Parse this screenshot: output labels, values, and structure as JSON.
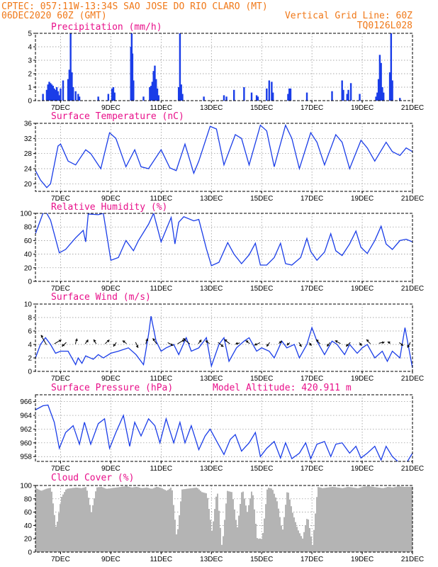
{
  "header": {
    "line1": "CPTEC:   057:11W-13:34S   SAO JOSE DO RIO CLARO (MT)",
    "line2_left": "06DEC2020 60Z (GMT)",
    "line2_right": "Vertical Grid Line: 60Z",
    "line3_right": "TQ0126L028"
  },
  "colors": {
    "header": "#f07818",
    "title": "#e8108a",
    "series": "#1a3de8",
    "cloud": "#b4b4b4",
    "grid": "#8a8a8a"
  },
  "x_axis": {
    "unit": "day",
    "range": [
      6.0,
      21.0
    ],
    "tick_days": [
      7,
      9,
      11,
      13,
      15,
      17,
      19,
      21
    ],
    "tick_labels": [
      "7DEC",
      "9DEC",
      "11DEC",
      "13DEC",
      "15DEC",
      "17DEC",
      "19DEC",
      "21DEC"
    ]
  },
  "panels": {
    "precip": {
      "title": "Precipitation (mm/h)",
      "yticks": [
        "0",
        "1",
        "2",
        "3",
        "4",
        "5"
      ]
    },
    "temp": {
      "title": "Surface Temperature (nC)",
      "yticks": [
        "20",
        "24",
        "28",
        "32",
        "36"
      ]
    },
    "humidity": {
      "title": "Relative Humidity (%)",
      "yticks": [
        "0",
        "20",
        "40",
        "60",
        "80",
        "100"
      ]
    },
    "wind": {
      "title": "Surface Wind (m/s)",
      "yticks": [
        "0",
        "2",
        "4",
        "6",
        "8",
        "10"
      ]
    },
    "pressure": {
      "title": "Surface Pressure (hPa)",
      "extra": "Model Altitude: 420.911 m",
      "yticks": [
        "958",
        "960",
        "962",
        "964",
        "966"
      ]
    },
    "cloud": {
      "title": "Cloud Cover (%)",
      "yticks": [
        "0",
        "20",
        "40",
        "60",
        "80",
        "100"
      ]
    }
  },
  "chart_data": [
    {
      "type": "bar",
      "title": "Precipitation (mm/h)",
      "ylim": [
        0,
        5
      ],
      "x": [
        6.3,
        6.45,
        6.5,
        6.55,
        6.6,
        6.65,
        6.7,
        6.75,
        6.8,
        6.85,
        6.9,
        6.95,
        7.0,
        7.1,
        7.3,
        7.35,
        7.4,
        7.45,
        7.5,
        7.6,
        7.7,
        7.75,
        8.5,
        8.9,
        9.05,
        9.1,
        9.15,
        9.8,
        9.83,
        9.86,
        9.9,
        10.3,
        10.55,
        10.6,
        10.65,
        10.7,
        10.75,
        10.8,
        10.85,
        10.9,
        11.7,
        11.75,
        11.8,
        11.85,
        12.7,
        13.5,
        13.6,
        13.9,
        14.3,
        14.6,
        14.8,
        14.85,
        15.2,
        15.3,
        15.4,
        15.45,
        16.05,
        16.1,
        16.15,
        16.8,
        17.8,
        18.2,
        18.25,
        18.4,
        18.45,
        18.55,
        18.9,
        19.55,
        19.6,
        19.65,
        19.7,
        19.75,
        19.8,
        19.85,
        20.1,
        20.15,
        20.2,
        20.5
      ],
      "values": [
        0.5,
        0.8,
        1.2,
        1.4,
        1.3,
        1.2,
        1.1,
        0.9,
        0.8,
        1.0,
        0.7,
        0.4,
        0.9,
        1.5,
        1.6,
        2.3,
        5.0,
        2.1,
        1.0,
        0.7,
        0.5,
        0.3,
        0.3,
        0.5,
        0.9,
        1.0,
        0.6,
        4.0,
        5.0,
        3.5,
        1.5,
        0.3,
        1.0,
        1.1,
        1.4,
        2.2,
        2.6,
        1.6,
        0.9,
        0.4,
        1.0,
        5.0,
        1.2,
        0.5,
        0.3,
        0.4,
        0.3,
        0.8,
        1.0,
        0.6,
        0.4,
        0.3,
        0.9,
        1.5,
        1.4,
        0.6,
        0.5,
        0.9,
        0.9,
        0.6,
        0.7,
        1.5,
        0.8,
        0.5,
        0.8,
        1.3,
        0.5,
        0.3,
        0.6,
        1.6,
        3.4,
        2.8,
        1.0,
        0.6,
        2.1,
        5.0,
        1.5,
        0.2
      ]
    },
    {
      "type": "line",
      "title": "Surface Temperature (nC)",
      "ylim": [
        18,
        36
      ],
      "x": [
        6.0,
        6.2,
        6.45,
        6.6,
        6.9,
        7.0,
        7.3,
        7.6,
        8.0,
        8.2,
        8.6,
        8.95,
        9.2,
        9.6,
        9.95,
        10.2,
        10.5,
        11.0,
        11.35,
        11.6,
        11.95,
        12.3,
        12.5,
        12.95,
        13.2,
        13.5,
        13.95,
        14.2,
        14.5,
        14.95,
        15.2,
        15.5,
        15.95,
        16.2,
        16.5,
        16.95,
        17.2,
        17.5,
        17.95,
        18.2,
        18.5,
        18.95,
        19.2,
        19.5,
        19.95,
        20.2,
        20.5,
        20.75,
        21.0
      ],
      "values": [
        23.5,
        21.0,
        19.0,
        20.0,
        30.0,
        30.5,
        26.0,
        25.0,
        29.0,
        28.0,
        24.0,
        33.5,
        32.0,
        24.5,
        29.0,
        24.5,
        24.0,
        29.0,
        24.2,
        23.5,
        30.5,
        22.8,
        26.0,
        35.2,
        34.5,
        25.0,
        33.0,
        32.0,
        25.0,
        35.5,
        34.0,
        24.5,
        35.5,
        32.0,
        24.0,
        33.5,
        31.0,
        25.0,
        33.0,
        31.0,
        24.0,
        31.5,
        29.5,
        26.0,
        31.0,
        28.5,
        27.5,
        29.5,
        28.5
      ]
    },
    {
      "type": "line",
      "title": "Relative Humidity (%)",
      "ylim": [
        0,
        100
      ],
      "x": [
        6.0,
        6.3,
        6.45,
        6.6,
        6.95,
        7.2,
        7.6,
        7.9,
        8.0,
        8.1,
        8.5,
        8.7,
        9.0,
        9.3,
        9.6,
        9.9,
        10.1,
        10.5,
        10.7,
        11.0,
        11.4,
        11.55,
        11.7,
        11.9,
        12.3,
        12.5,
        12.8,
        13.0,
        13.3,
        13.65,
        13.9,
        14.2,
        14.5,
        14.75,
        14.95,
        15.2,
        15.5,
        15.75,
        15.95,
        16.2,
        16.55,
        16.8,
        16.95,
        17.2,
        17.5,
        17.75,
        17.95,
        18.2,
        18.5,
        18.75,
        18.95,
        19.2,
        19.5,
        19.75,
        19.95,
        20.2,
        20.5,
        20.75,
        21.0
      ],
      "values": [
        70.0,
        100.0,
        100.0,
        90.0,
        42.0,
        47.0,
        64.0,
        75.0,
        58.0,
        99.0,
        98.0,
        100.0,
        31.0,
        35.0,
        60.0,
        45.0,
        60.0,
        84.0,
        100.0,
        58.0,
        94.0,
        55.0,
        87.0,
        95.0,
        89.0,
        91.0,
        48.0,
        23.0,
        28.0,
        57.0,
        40.0,
        26.0,
        39.0,
        56.0,
        24.0,
        24.0,
        35.0,
        56.0,
        26.0,
        24.0,
        35.0,
        63.0,
        44.0,
        31.0,
        43.0,
        70.0,
        45.0,
        38.0,
        55.0,
        74.0,
        50.0,
        41.0,
        60.0,
        81.0,
        55.0,
        47.0,
        60.0,
        62.0,
        58.0
      ]
    },
    {
      "type": "line",
      "title": "Surface Wind (m/s)",
      "ylim": [
        0,
        10
      ],
      "x": [
        6.0,
        6.2,
        6.4,
        6.6,
        6.8,
        7.0,
        7.3,
        7.6,
        7.7,
        7.85,
        8.0,
        8.3,
        8.5,
        8.7,
        9.0,
        9.3,
        9.7,
        10.0,
        10.3,
        10.5,
        10.6,
        10.8,
        11.0,
        11.2,
        11.5,
        11.7,
        12.0,
        12.2,
        12.5,
        12.8,
        13.0,
        13.3,
        13.5,
        13.7,
        14.0,
        14.3,
        14.5,
        14.8,
        15.0,
        15.3,
        15.5,
        15.8,
        16.0,
        16.3,
        16.5,
        16.8,
        17.0,
        17.2,
        17.5,
        17.8,
        18.0,
        18.3,
        18.5,
        18.8,
        19.0,
        19.2,
        19.5,
        19.8,
        20.0,
        20.2,
        20.5,
        20.7,
        21.0
      ],
      "values": [
        2.0,
        4.0,
        5.0,
        4.0,
        2.7,
        3.0,
        3.0,
        1.0,
        2.0,
        1.2,
        2.3,
        1.8,
        2.5,
        2.0,
        2.7,
        3.0,
        3.5,
        2.5,
        1.0,
        5.5,
        8.2,
        4.5,
        3.0,
        3.5,
        4.0,
        2.5,
        5.0,
        3.0,
        3.5,
        5.0,
        0.8,
        4.0,
        5.0,
        1.5,
        3.5,
        4.5,
        5.0,
        3.0,
        3.5,
        3.0,
        2.0,
        4.5,
        3.5,
        4.0,
        2.0,
        4.0,
        6.5,
        4.5,
        2.5,
        4.5,
        4.0,
        2.5,
        4.0,
        2.7,
        3.5,
        4.0,
        2.0,
        3.0,
        1.5,
        3.0,
        2.0,
        6.5,
        0.5
      ]
    },
    {
      "type": "line",
      "title": "Surface Pressure (hPa)",
      "ylim": [
        957.3,
        967
      ],
      "x": [
        6.0,
        6.3,
        6.5,
        6.75,
        6.95,
        7.2,
        7.5,
        7.75,
        7.95,
        8.2,
        8.5,
        8.75,
        8.95,
        9.2,
        9.5,
        9.75,
        9.95,
        10.2,
        10.5,
        10.75,
        10.95,
        11.2,
        11.5,
        11.75,
        11.95,
        12.2,
        12.5,
        12.75,
        12.95,
        13.2,
        13.5,
        13.75,
        13.95,
        14.2,
        14.5,
        14.75,
        14.95,
        15.2,
        15.5,
        15.75,
        15.95,
        16.2,
        16.5,
        16.75,
        16.95,
        17.2,
        17.5,
        17.75,
        17.95,
        18.2,
        18.5,
        18.75,
        18.95,
        19.2,
        19.5,
        19.75,
        19.95,
        20.2,
        20.5,
        20.75,
        21.0
      ],
      "values": [
        964.8,
        965.4,
        965.5,
        963.0,
        959.2,
        961.5,
        962.5,
        959.8,
        963.0,
        959.8,
        962.8,
        963.5,
        959.2,
        961.5,
        964.0,
        959.5,
        963.0,
        961.0,
        963.5,
        962.5,
        960.0,
        963.5,
        960.0,
        963.0,
        960.0,
        962.5,
        959.0,
        961.0,
        962.0,
        960.3,
        958.3,
        960.5,
        961.2,
        958.8,
        960.0,
        961.5,
        958.0,
        959.2,
        960.2,
        957.8,
        960.0,
        957.7,
        958.5,
        960.0,
        957.7,
        959.8,
        960.2,
        958.0,
        959.8,
        960.0,
        958.5,
        959.5,
        957.8,
        958.5,
        959.5,
        957.5,
        959.5,
        958.0,
        957.0,
        957.0,
        958.5
      ]
    },
    {
      "type": "bar",
      "title": "Cloud Cover (%)",
      "ylim": [
        0,
        100
      ],
      "x": [
        6.0,
        6.2,
        6.4,
        6.6,
        6.8,
        7.0,
        7.2,
        7.4,
        7.6,
        7.8,
        8.0,
        8.2,
        8.4,
        8.6,
        8.8,
        9.0,
        9.2,
        9.4,
        9.6,
        9.8,
        10.0,
        10.2,
        10.4,
        10.6,
        10.8,
        11.0,
        11.2,
        11.4,
        11.6,
        11.8,
        12.0,
        12.2,
        12.4,
        12.6,
        12.8,
        13.0,
        13.2,
        13.4,
        13.6,
        13.8,
        14.0,
        14.2,
        14.4,
        14.6,
        14.8,
        15.0,
        15.2,
        15.4,
        15.6,
        15.8,
        16.0,
        16.2,
        16.4,
        16.6,
        16.8,
        17.0,
        17.2,
        17.4,
        17.6,
        17.8,
        18.0,
        18.2,
        18.4,
        18.6,
        18.8,
        19.0,
        19.2,
        19.4,
        19.6,
        19.8,
        20.0,
        20.2,
        20.4,
        20.6,
        20.8
      ],
      "values": [
        96,
        92,
        95,
        97,
        35,
        82,
        95,
        96,
        97,
        96,
        98,
        60,
        97,
        98,
        95,
        96,
        97,
        98,
        99,
        97,
        98,
        96,
        97,
        95,
        98,
        96,
        92,
        98,
        20,
        94,
        95,
        96,
        97,
        90,
        88,
        30,
        96,
        5,
        92,
        90,
        35,
        97,
        60,
        96,
        20,
        20,
        97,
        95,
        75,
        30,
        96,
        60,
        35,
        20,
        55,
        10,
        98,
        96,
        97,
        98,
        97,
        96,
        98,
        97,
        96,
        98,
        99,
        98,
        97,
        96,
        98,
        97,
        99,
        98,
        98
      ]
    },
    {
      "type": "scatter",
      "title": "Surface Wind vectors",
      "x": [
        6.4,
        6.8,
        7.2,
        7.6,
        8.0,
        8.4,
        8.8,
        9.2,
        9.6,
        10.0,
        10.4,
        10.8,
        11.3,
        11.7,
        12.1,
        12.5,
        12.9,
        13.3,
        13.7,
        14.1,
        14.5,
        14.9,
        15.3,
        15.7,
        16.1,
        16.5,
        16.9,
        17.3,
        17.7,
        18.1,
        18.5,
        18.9,
        19.3,
        19.7,
        20.1,
        20.5,
        20.9
      ],
      "u": [
        -2.0,
        2.5,
        -1.5,
        0.5,
        1.0,
        -1.0,
        1.5,
        -1.0,
        -1.5,
        1.0,
        0.5,
        -1.5,
        2.0,
        2.5,
        -2.5,
        1.0,
        -1.5,
        2.0,
        -2.0,
        -1.5,
        -1.5,
        -2.0,
        -1.0,
        1.0,
        -1.0,
        1.0,
        1.0,
        -1.5,
        -1.0,
        -2.0,
        -1.5,
        1.0,
        -1.5,
        2.0,
        -1.0,
        1.5,
        -1.0
      ],
      "v": [
        3.5,
        1.5,
        -1.5,
        2.0,
        1.5,
        1.5,
        1.5,
        -1.5,
        1.0,
        -2.0,
        2.0,
        2.0,
        -1.0,
        1.5,
        2.0,
        1.5,
        1.0,
        -1.5,
        1.5,
        -0.5,
        1.0,
        -1.0,
        -1.5,
        1.0,
        -1.0,
        -1.5,
        -1.0,
        1.5,
        -1.5,
        1.0,
        -1.5,
        -1.0,
        1.5,
        0.5,
        0.5,
        -1.0,
        -2.0
      ]
    }
  ]
}
